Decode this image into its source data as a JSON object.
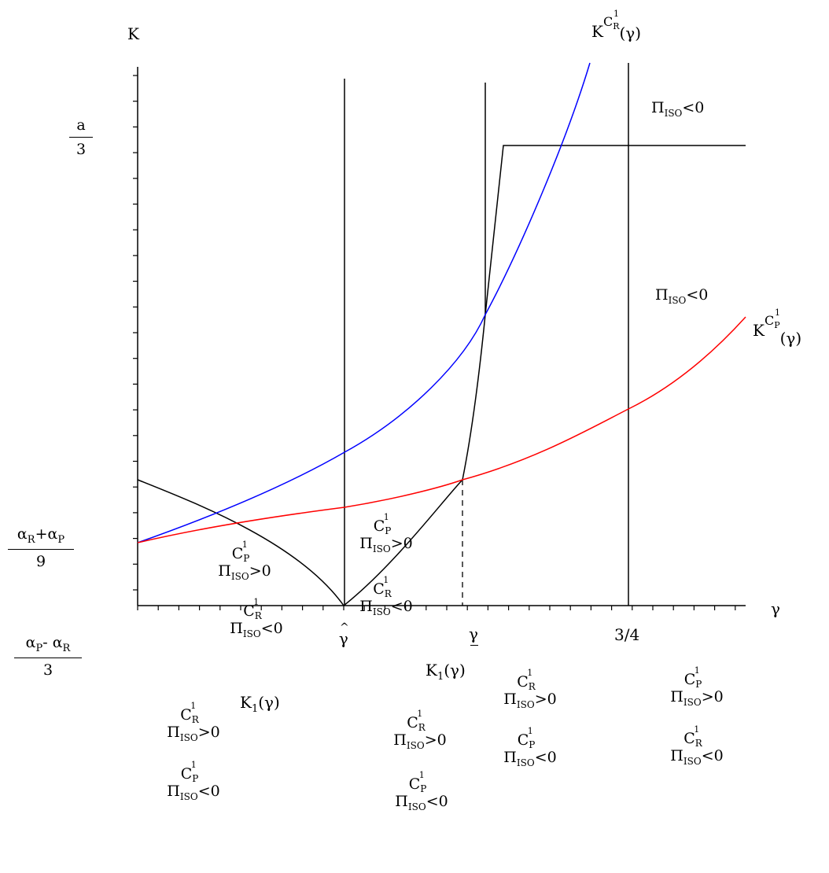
{
  "axes": {
    "y_label": "K",
    "x_label": "γ",
    "x_ticks": [
      {
        "text": "γ",
        "mark": "hat"
      },
      {
        "text": "γ",
        "mark": "underline"
      },
      {
        "text": "3/4",
        "mark": "none"
      }
    ],
    "y_ticks": {
      "a_over_3": {
        "num": "a",
        "den": "3"
      },
      "sum_over_9": {
        "num_a": "α",
        "num_a_sub": "R",
        "num_plus": "+",
        "num_b": "α",
        "num_b_sub": "P",
        "den": "9"
      },
      "diff_over_3": {
        "num_a": "α",
        "num_a_sub": "P",
        "num_minus": "- ",
        "num_b": "α",
        "num_b_sub": "R",
        "den": "3"
      }
    }
  },
  "curves": {
    "kcr": {
      "base": "K",
      "sup_c": "C",
      "sup_sup": "1",
      "sup_sub": "R",
      "arg": "(γ)",
      "color": "#0000ff"
    },
    "kcp": {
      "base": "K",
      "sup_c": "C",
      "sup_sup": "1",
      "sup_sub": "P",
      "arg": "(γ)",
      "color": "#ff0000"
    },
    "k1_left": {
      "base": "K",
      "sub": "1",
      "arg": "(γ)"
    },
    "k1_right": {
      "base": "K",
      "sub": "1",
      "arg": "(γ)"
    }
  },
  "regions": {
    "top_right_1": {
      "pi": "Π",
      "pi_sub": "ISO",
      "rel": "<0"
    },
    "top_right_2": {
      "pi": "Π",
      "pi_sub": "ISO",
      "rel": "<0"
    },
    "r1": [
      {
        "c": "C",
        "sup": "1",
        "sub": "P",
        "pi": "Π",
        "pi_sub": "ISO",
        "rel": ">0"
      },
      {
        "c": "C",
        "sup": "1",
        "sub": "R",
        "pi": "Π",
        "pi_sub": "ISO",
        "rel": "<0"
      }
    ],
    "r2": [
      {
        "c": "C",
        "sup": "1",
        "sub": "P",
        "pi": "Π",
        "pi_sub": "ISO",
        "rel": ">0"
      },
      {
        "c": "C",
        "sup": "1",
        "sub": "R",
        "pi": "Π",
        "pi_sub": "ISO",
        "rel": "<0"
      }
    ],
    "r3": [
      {
        "c": "C",
        "sup": "1",
        "sub": "R",
        "pi": "Π",
        "pi_sub": "ISO",
        "rel": ">0"
      },
      {
        "c": "C",
        "sup": "1",
        "sub": "P",
        "pi": "Π",
        "pi_sub": "ISO",
        "rel": "<0"
      }
    ],
    "r4": [
      {
        "c": "C",
        "sup": "1",
        "sub": "R",
        "pi": "Π",
        "pi_sub": "ISO",
        "rel": ">0"
      },
      {
        "c": "C",
        "sup": "1",
        "sub": "P",
        "pi": "Π",
        "pi_sub": "ISO",
        "rel": "<0"
      }
    ],
    "r5": [
      {
        "c": "C",
        "sup": "1",
        "sub": "R",
        "pi": "Π",
        "pi_sub": "ISO",
        "rel": ">0"
      },
      {
        "c": "C",
        "sup": "1",
        "sub": "P",
        "pi": "Π",
        "pi_sub": "ISO",
        "rel": "<0"
      }
    ],
    "r6": [
      {
        "c": "C",
        "sup": "1",
        "sub": "P",
        "pi": "Π",
        "pi_sub": "ISO",
        "rel": ">0"
      },
      {
        "c": "C",
        "sup": "1",
        "sub": "R",
        "pi": "Π",
        "pi_sub": "ISO",
        "rel": "<0"
      }
    ]
  }
}
